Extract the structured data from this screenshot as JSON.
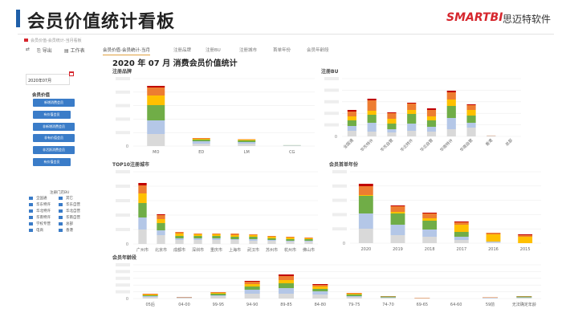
{
  "slide": {
    "title": "会员价值统计看板",
    "logo": "SMARTBI",
    "logo_cn": "思迈特软件"
  },
  "dashboard": {
    "breadcrumb": "会员价值-会员统计-当月看板",
    "toolbar": {
      "export": "导出",
      "sheet": "工作表"
    },
    "tabs": [
      {
        "label": "会员价值-会员统计-当月",
        "active": true
      },
      {
        "label": "注册品牌"
      },
      {
        "label": "注册BU"
      },
      {
        "label": "注册城市"
      },
      {
        "label": "首单年份"
      },
      {
        "label": "会员年龄段"
      }
    ],
    "main_title": "2020 年 07 月 消费会员价值统计",
    "sidebar": {
      "date_value": "2020年07月",
      "section_title": "会员价值",
      "buttons": [
        "新增消费会员",
        "有价值会员",
        "非新增消费会员",
        "非有价值会员",
        "非活跃消费会员",
        "有价值会员"
      ],
      "legend_title": "注册门店BU",
      "legend_items": [
        "全国通",
        "其它",
        "华东特许",
        "华东自营",
        "华北特许",
        "华北自营",
        "华南特许",
        "华南自营",
        "学校专营",
        "总部",
        "电商",
        "香港"
      ]
    }
  },
  "colors": {
    "accent": "#1f5fa8",
    "brand": "#d6262d",
    "button": "#3a7cc8",
    "segments": [
      "#d9d9d9",
      "#b4c7e7",
      "#70ad47",
      "#ffc000",
      "#ed7d31",
      "#c00000"
    ]
  },
  "chart_data": [
    {
      "type": "bar",
      "stacked": true,
      "title": "注册品牌",
      "ytick_zero": "0",
      "grid": true,
      "categories": [
        "MO",
        "ED",
        "LM",
        "CG"
      ],
      "segments": [
        [
          15,
          17,
          19,
          12,
          10,
          2
        ],
        [
          3,
          3,
          2,
          1,
          1,
          0
        ],
        [
          3,
          2,
          2,
          1,
          0.5,
          0
        ],
        [
          0.6,
          0.3,
          0.2,
          0,
          0,
          0
        ]
      ]
    },
    {
      "type": "bar",
      "stacked": true,
      "title": "注册BU",
      "ytick_zero": "0",
      "grid": true,
      "categories": [
        "全国通",
        "华东特许",
        "华东自营",
        "华北特许",
        "华北自营",
        "华南特许",
        "华南自营",
        "香港",
        "总部"
      ],
      "segments": [
        [
          7,
          6,
          7,
          5,
          6,
          2
        ],
        [
          6,
          11,
          10,
          5,
          13,
          2
        ],
        [
          5,
          4,
          7,
          6,
          7,
          1
        ],
        [
          7,
          9,
          12,
          5,
          8,
          1
        ],
        [
          6,
          6,
          8,
          5,
          8,
          2
        ],
        [
          9,
          14,
          15,
          8,
          9,
          2
        ],
        [
          11,
          6,
          9,
          7,
          6,
          1
        ],
        [
          0.5,
          0.3,
          0,
          0,
          0.3,
          0
        ],
        [
          0,
          0,
          0,
          0,
          0,
          0
        ]
      ]
    },
    {
      "type": "bar",
      "stacked": true,
      "title": "TOP10注册城市",
      "ytick_zero": "0",
      "grid": true,
      "categories": [
        "广州市",
        "北京市",
        "成都市",
        "深圳市",
        "重庆市",
        "上海市",
        "武汉市",
        "苏州市",
        "杭州市",
        "佛山市"
      ],
      "segments": [
        [
          18,
          15,
          18,
          12,
          10,
          3
        ],
        [
          11,
          6,
          9,
          5,
          5,
          1
        ],
        [
          5,
          2,
          3,
          3,
          2,
          0
        ],
        [
          5,
          2,
          3,
          2,
          1,
          0
        ],
        [
          5,
          2,
          3,
          2,
          1,
          0
        ],
        [
          5,
          1,
          3,
          2,
          2,
          0
        ],
        [
          4,
          2,
          3,
          2,
          1,
          0
        ],
        [
          4,
          1,
          2,
          2,
          1,
          0
        ],
        [
          3,
          1,
          2,
          2,
          1,
          0
        ],
        [
          3,
          1,
          2,
          1,
          1,
          0
        ]
      ]
    },
    {
      "type": "bar",
      "stacked": true,
      "title": "会员首单年份",
      "ytick_zero": "0",
      "grid": true,
      "categories": [
        "2020",
        "2019",
        "2018",
        "2017",
        "2016",
        "2015"
      ],
      "segments": [
        [
          18,
          19,
          22,
          1,
          11,
          3
        ],
        [
          10,
          13,
          14,
          2,
          7,
          1
        ],
        [
          8,
          9,
          11,
          3,
          6,
          1
        ],
        [
          4,
          4,
          6,
          9,
          3,
          1
        ],
        [
          1,
          1,
          0,
          9,
          2,
          0
        ],
        [
          0,
          0,
          0,
          8,
          2,
          1
        ]
      ]
    },
    {
      "type": "bar",
      "stacked": true,
      "title": "会员年龄段",
      "ytick_zero": "0",
      "grid": true,
      "categories": [
        "05后",
        "04-00",
        "99-95",
        "94-90",
        "89-85",
        "84-80",
        "79-75",
        "74-70",
        "69-65",
        "64-60",
        "59前",
        "无法确定年龄"
      ],
      "segments": [
        [
          2,
          1,
          1,
          1,
          1,
          0
        ],
        [
          1,
          0.5,
          0,
          0,
          0.5,
          0
        ],
        [
          3,
          1,
          2,
          1,
          1,
          0
        ],
        [
          6,
          5,
          4,
          3,
          3,
          1
        ],
        [
          6,
          7,
          6,
          4,
          5,
          2
        ],
        [
          5,
          4,
          3,
          3,
          2,
          1
        ],
        [
          2,
          1,
          2,
          1,
          1,
          0
        ],
        [
          1,
          0.5,
          1,
          0,
          0.5,
          0
        ],
        [
          0.5,
          0,
          0,
          0,
          0.5,
          0
        ],
        [
          0,
          0,
          0,
          0,
          0,
          0
        ],
        [
          0.5,
          0.5,
          0,
          0,
          0.5,
          0
        ],
        [
          1,
          0.5,
          1,
          0,
          0.5,
          0
        ]
      ]
    }
  ]
}
